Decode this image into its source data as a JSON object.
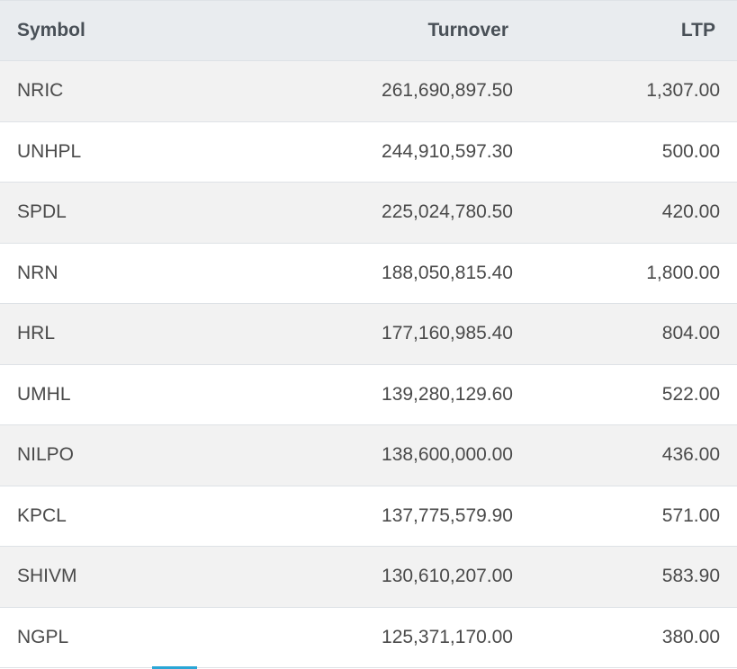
{
  "headers": {
    "symbol": "Symbol",
    "turnover": "Turnover",
    "ltp": "LTP"
  },
  "rows": [
    {
      "symbol": "NRIC",
      "turnover": "261,690,897.50",
      "ltp": "1,307.00"
    },
    {
      "symbol": "UNHPL",
      "turnover": "244,910,597.30",
      "ltp": "500.00"
    },
    {
      "symbol": "SPDL",
      "turnover": "225,024,780.50",
      "ltp": "420.00"
    },
    {
      "symbol": "NRN",
      "turnover": "188,050,815.40",
      "ltp": "1,800.00"
    },
    {
      "symbol": "HRL",
      "turnover": "177,160,985.40",
      "ltp": "804.00"
    },
    {
      "symbol": "UMHL",
      "turnover": "139,280,129.60",
      "ltp": "522.00"
    },
    {
      "symbol": "NILPO",
      "turnover": "138,600,000.00",
      "ltp": "436.00"
    },
    {
      "symbol": "KPCL",
      "turnover": "137,775,579.90",
      "ltp": "571.00"
    },
    {
      "symbol": "SHIVM",
      "turnover": "130,610,207.00",
      "ltp": "583.90"
    },
    {
      "symbol": "NGPL",
      "turnover": "125,371,170.00",
      "ltp": "380.00"
    }
  ],
  "colors": {
    "header_bg": "#e9ecef",
    "stripe_bg": "#f2f2f2",
    "accent": "#2aa6d6"
  }
}
